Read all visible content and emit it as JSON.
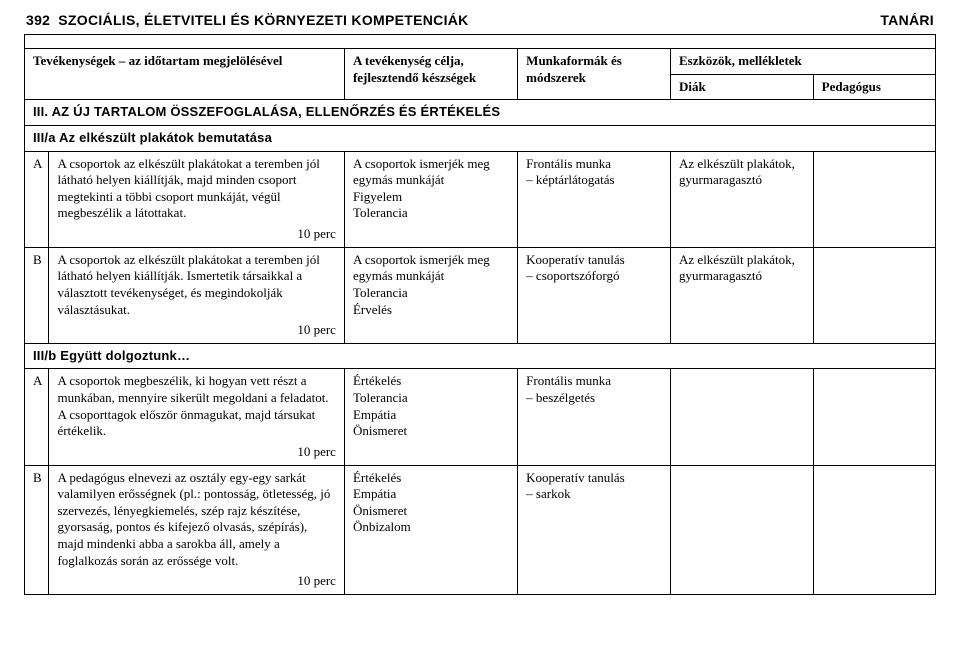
{
  "page_number": "392",
  "header_title": "SZOCIÁLIS, ÉLETVITELI ÉS KÖRNYEZETI KOMPETENCIÁK",
  "header_right": "TANÁRI",
  "thead": {
    "col1": "Tevékenységek – az időtartam megjelölésével",
    "col2": "A tevékenység célja, fejlesztendő készségek",
    "col3": "Munkaformák és módszerek",
    "col4_top": "Eszközök, mellékletek",
    "col4_diak": "Diák",
    "col4_ped": "Pedagógus"
  },
  "section1": "III. AZ ÚJ TARTALOM ÖSSZEFOGLALÁSA, ELLENŐRZÉS ÉS ÉRTÉKELÉS",
  "section2": "III/a Az elkészült plakátok bemutatása",
  "section3": "III/b Együtt dolgoztunk…",
  "rows": {
    "a1": {
      "code": "A",
      "text": "A csoportok az elkészült plakátokat a teremben jól látható helyen kiállítják, majd minden csoport megtekinti a többi csoport munkáját, végül megbeszélik a látottakat.",
      "time": "10 perc",
      "col2": "A csoportok ismerjék meg egymás munkáját\nFigyelem\nTolerancia",
      "col3": "Frontális munka\n– képtárlátogatás",
      "col4": "Az elkészült plakátok, gyurmaragasztó"
    },
    "b1": {
      "code": "B",
      "text": "A csoportok az elkészült plakátokat a teremben jól látható helyen kiállítják. Ismertetik társaikkal a választott tevékenységet, és megindokolják választásukat.",
      "time": "10 perc",
      "col2": "A csoportok ismerjék meg egymás munkáját\nTolerancia\nÉrvelés",
      "col3": "Kooperatív tanulás\n– csoportszóforgó",
      "col4": "Az elkészült plakátok, gyurmaragasztó"
    },
    "a2": {
      "code": "A",
      "text": "A csoportok megbeszélik, ki hogyan vett részt a munkában, mennyire sikerült megoldani a feladatot. A csoporttagok először önmagukat, majd társukat értékelik.",
      "time": "10 perc",
      "col2": "Értékelés\nTolerancia\nEmpátia\nÖnismeret",
      "col3": "Frontális munka\n– beszélgetés",
      "col4": ""
    },
    "b2": {
      "code": "B",
      "text": "A pedagógus elnevezi az osztály egy-egy sarkát valamilyen erősségnek (pl.: pontosság, ötletesség, jó szervezés, lényegkiemelés, szép rajz készítése, gyorsaság, pontos és kifejező olvasás, szépírás), majd mindenki abba a sarokba áll, amely a foglalkozás során az erőssége volt.",
      "time": "10 perc",
      "col2": "Értékelés\nEmpátia\nÖnismeret\nÖnbizalom",
      "col3": "Kooperatív tanulás\n– sarkok",
      "col4": ""
    }
  }
}
